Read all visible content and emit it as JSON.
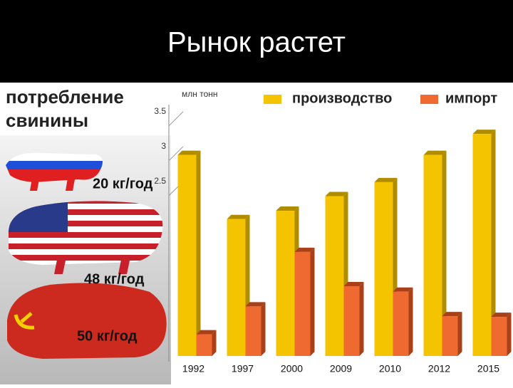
{
  "title": "Рынок растет",
  "side": {
    "heading": [
      "потребление",
      "свинины"
    ],
    "labels": [
      "20 кг/год",
      "48 кг/год",
      "50 кг/год"
    ]
  },
  "chart_data": {
    "type": "bar",
    "y_label": "млн тонн",
    "categories": [
      "1992",
      "1997",
      "2000",
      "2009",
      "2010",
      "2012",
      "2015"
    ],
    "series": [
      {
        "name": "производство",
        "color": "#f5c400",
        "values": [
          2.88,
          1.96,
          2.08,
          2.29,
          2.49,
          2.88,
          3.18
        ]
      },
      {
        "name": "импорт",
        "color": "#ee6a30",
        "values": [
          0.31,
          0.71,
          1.49,
          1.0,
          0.92,
          0.57,
          0.56
        ]
      }
    ],
    "ylim": [
      0,
      3.6
    ],
    "yticks": [
      2.5,
      3,
      3.5
    ]
  }
}
